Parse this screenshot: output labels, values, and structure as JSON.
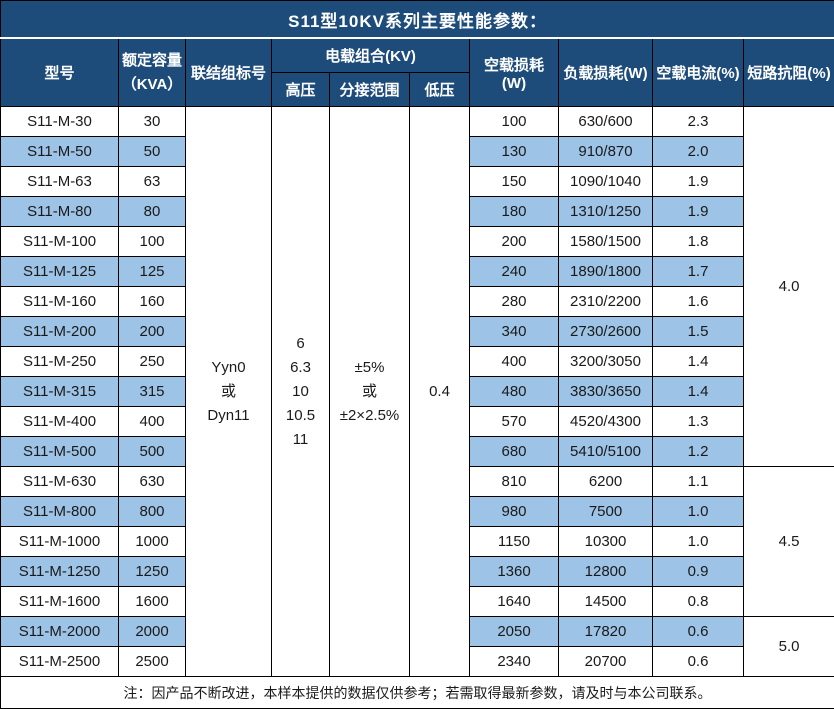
{
  "title": "S11型10KV系列主要性能参数：",
  "colors": {
    "header_bg": "#1E4C7A",
    "header_text": "#FFFFFF",
    "stripe_bg": "#9DC3E6",
    "row_bg": "#FFFFFF",
    "border": "#000000"
  },
  "header": {
    "model": "型号",
    "capacity": "额定容量\n（KVA）",
    "connection": "联结组标号",
    "load_combo_group": "电载组合(KV)",
    "hv": "高压",
    "tap_range": "分接范围",
    "lv": "低压",
    "no_load_loss": "空载损耗(W)",
    "load_loss": "负载损耗(W)",
    "no_load_current": "空载电流(%)",
    "impedance": "短路抗阻(%)"
  },
  "merged": {
    "connection": "Yyn0\n或\nDyn11",
    "hv": "6\n6.3\n10\n10.5\n11",
    "tap_range": "±5%\n或\n±2×2.5%",
    "lv": "0.4",
    "impedance_groups": [
      {
        "value": "4.0",
        "rows": 12
      },
      {
        "value": "4.5",
        "rows": 5
      },
      {
        "value": "5.0",
        "rows": 2
      }
    ]
  },
  "rows": [
    {
      "model": "S11-M-30",
      "capacity": "30",
      "no_load_loss": "100",
      "load_loss": "630/600",
      "no_load_current": "2.3"
    },
    {
      "model": "S11-M-50",
      "capacity": "50",
      "no_load_loss": "130",
      "load_loss": "910/870",
      "no_load_current": "2.0"
    },
    {
      "model": "S11-M-63",
      "capacity": "63",
      "no_load_loss": "150",
      "load_loss": "1090/1040",
      "no_load_current": "1.9"
    },
    {
      "model": "S11-M-80",
      "capacity": "80",
      "no_load_loss": "180",
      "load_loss": "1310/1250",
      "no_load_current": "1.9"
    },
    {
      "model": "S11-M-100",
      "capacity": "100",
      "no_load_loss": "200",
      "load_loss": "1580/1500",
      "no_load_current": "1.8"
    },
    {
      "model": "S11-M-125",
      "capacity": "125",
      "no_load_loss": "240",
      "load_loss": "1890/1800",
      "no_load_current": "1.7"
    },
    {
      "model": "S11-M-160",
      "capacity": "160",
      "no_load_loss": "280",
      "load_loss": "2310/2200",
      "no_load_current": "1.6"
    },
    {
      "model": "S11-M-200",
      "capacity": "200",
      "no_load_loss": "340",
      "load_loss": "2730/2600",
      "no_load_current": "1.5"
    },
    {
      "model": "S11-M-250",
      "capacity": "250",
      "no_load_loss": "400",
      "load_loss": "3200/3050",
      "no_load_current": "1.4"
    },
    {
      "model": "S11-M-315",
      "capacity": "315",
      "no_load_loss": "480",
      "load_loss": "3830/3650",
      "no_load_current": "1.4"
    },
    {
      "model": "S11-M-400",
      "capacity": "400",
      "no_load_loss": "570",
      "load_loss": "4520/4300",
      "no_load_current": "1.3"
    },
    {
      "model": "S11-M-500",
      "capacity": "500",
      "no_load_loss": "680",
      "load_loss": "5410/5100",
      "no_load_current": "1.2"
    },
    {
      "model": "S11-M-630",
      "capacity": "630",
      "no_load_loss": "810",
      "load_loss": "6200",
      "no_load_current": "1.1"
    },
    {
      "model": "S11-M-800",
      "capacity": "800",
      "no_load_loss": "980",
      "load_loss": "7500",
      "no_load_current": "1.0"
    },
    {
      "model": "S11-M-1000",
      "capacity": "1000",
      "no_load_loss": "1150",
      "load_loss": "10300",
      "no_load_current": "1.0"
    },
    {
      "model": "S11-M-1250",
      "capacity": "1250",
      "no_load_loss": "1360",
      "load_loss": "12800",
      "no_load_current": "0.9"
    },
    {
      "model": "S11-M-1600",
      "capacity": "1600",
      "no_load_loss": "1640",
      "load_loss": "14500",
      "no_load_current": "0.8"
    },
    {
      "model": "S11-M-2000",
      "capacity": "2000",
      "no_load_loss": "2050",
      "load_loss": "17820",
      "no_load_current": "0.6"
    },
    {
      "model": "S11-M-2500",
      "capacity": "2500",
      "no_load_loss": "2340",
      "load_loss": "20700",
      "no_load_current": "0.6"
    }
  ],
  "note": "注：因产品不断改进，本样本提供的数据仅供参考；若需取得最新参数，请及时与本公司联系。"
}
